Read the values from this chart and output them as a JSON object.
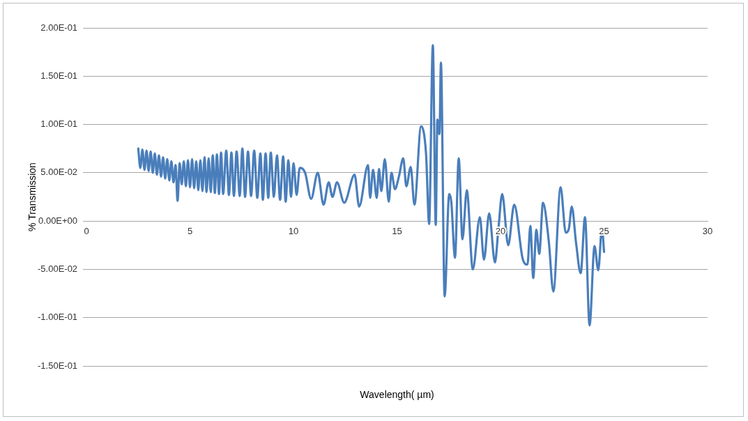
{
  "chart_data": {
    "type": "line",
    "xlabel": "Wavelength( µm)",
    "ylabel": "% Transmission",
    "xlim": [
      0,
      30
    ],
    "xticks": [
      0,
      5,
      10,
      15,
      20,
      25,
      30
    ],
    "ylim": [
      -0.15,
      0.2
    ],
    "yticks": [
      {
        "value": -0.15,
        "label": "-1.50E-01"
      },
      {
        "value": -0.1,
        "label": "-1.00E-01"
      },
      {
        "value": -0.05,
        "label": "-5.00E-02"
      },
      {
        "value": 0,
        "label": "0.00E+00"
      },
      {
        "value": 0.05,
        "label": "5.00E-02"
      },
      {
        "value": 0.1,
        "label": "1.00E-01"
      },
      {
        "value": 0.15,
        "label": "1.50E-01"
      },
      {
        "value": 0.2,
        "label": "2.00E-01"
      }
    ],
    "grid": "y",
    "legend": false,
    "marker": "none",
    "line_style": "solid",
    "series": [
      {
        "color": "#4a7ebb",
        "x": [
          2.5,
          2.6,
          2.7,
          2.8,
          2.9,
          3.0,
          3.1,
          3.2,
          3.3,
          3.4,
          3.5,
          3.6,
          3.7,
          3.8,
          3.9,
          4.0,
          4.1,
          4.2,
          4.3,
          4.4,
          4.5,
          4.6,
          4.7,
          4.8,
          4.9,
          5.0,
          5.1,
          5.2,
          5.3,
          5.4,
          5.5,
          5.6,
          5.7,
          5.8,
          5.9,
          6.0,
          6.1,
          6.2,
          6.3,
          6.4,
          6.5,
          6.6,
          6.75,
          6.88,
          7.0,
          7.12,
          7.25,
          7.4,
          7.53,
          7.66,
          7.8,
          7.95,
          8.1,
          8.25,
          8.4,
          8.52,
          8.65,
          8.78,
          8.9,
          9.05,
          9.2,
          9.35,
          9.5,
          9.62,
          9.75,
          9.88,
          10.0,
          10.15,
          10.3,
          10.56,
          10.85,
          11.17,
          11.45,
          11.7,
          11.88,
          12.1,
          12.45,
          12.95,
          13.17,
          13.6,
          13.7,
          13.84,
          14.02,
          14.13,
          14.24,
          14.41,
          14.6,
          14.73,
          14.9,
          15.09,
          15.3,
          15.45,
          15.66,
          15.84,
          16.16,
          16.4,
          16.55,
          16.73,
          16.87,
          16.95,
          17.05,
          17.12,
          17.3,
          17.52,
          17.62,
          17.8,
          17.98,
          18.16,
          18.37,
          18.66,
          19.0,
          19.2,
          19.45,
          19.73,
          19.9,
          20.08,
          20.37,
          20.66,
          21.08,
          21.3,
          21.44,
          21.58,
          21.73,
          21.87,
          22.05,
          22.33,
          22.55,
          22.9,
          23.15,
          23.3,
          23.44,
          23.65,
          23.87,
          24.08,
          24.3,
          24.54,
          24.72,
          24.9,
          25.0
        ],
        "values": [
          0.075,
          0.055,
          0.074,
          0.053,
          0.073,
          0.052,
          0.072,
          0.05,
          0.07,
          0.048,
          0.068,
          0.046,
          0.066,
          0.044,
          0.064,
          0.042,
          0.062,
          0.04,
          0.058,
          0.021,
          0.06,
          0.038,
          0.062,
          0.036,
          0.063,
          0.035,
          0.064,
          0.034,
          0.062,
          0.032,
          0.063,
          0.031,
          0.066,
          0.03,
          0.065,
          0.03,
          0.068,
          0.029,
          0.069,
          0.028,
          0.071,
          0.028,
          0.073,
          0.027,
          0.071,
          0.026,
          0.072,
          0.026,
          0.075,
          0.025,
          0.072,
          0.026,
          0.073,
          0.024,
          0.07,
          0.022,
          0.07,
          0.024,
          0.071,
          0.025,
          0.068,
          0.022,
          0.067,
          0.02,
          0.063,
          0.025,
          0.06,
          0.027,
          0.055,
          0.05,
          0.023,
          0.05,
          0.017,
          0.04,
          0.025,
          0.04,
          0.019,
          0.048,
          0.015,
          0.058,
          0.024,
          0.053,
          0.024,
          0.054,
          0.031,
          0.064,
          0.02,
          0.05,
          0.033,
          0.046,
          0.065,
          0.036,
          0.056,
          0.017,
          0.098,
          0.07,
          -0.003,
          0.182,
          -0.004,
          0.105,
          0.09,
          0.164,
          -0.078,
          0.028,
          0.02,
          -0.038,
          0.065,
          -0.019,
          0.032,
          -0.05,
          0.004,
          -0.04,
          0.008,
          -0.043,
          -0.007,
          0.028,
          -0.025,
          0.017,
          -0.04,
          -0.045,
          -0.005,
          -0.059,
          -0.009,
          -0.034,
          0.019,
          -0.021,
          -0.073,
          0.035,
          -0.012,
          -0.008,
          0.015,
          -0.023,
          -0.054,
          0.004,
          -0.108,
          -0.026,
          -0.051,
          -0.007,
          -0.032
        ]
      }
    ]
  }
}
